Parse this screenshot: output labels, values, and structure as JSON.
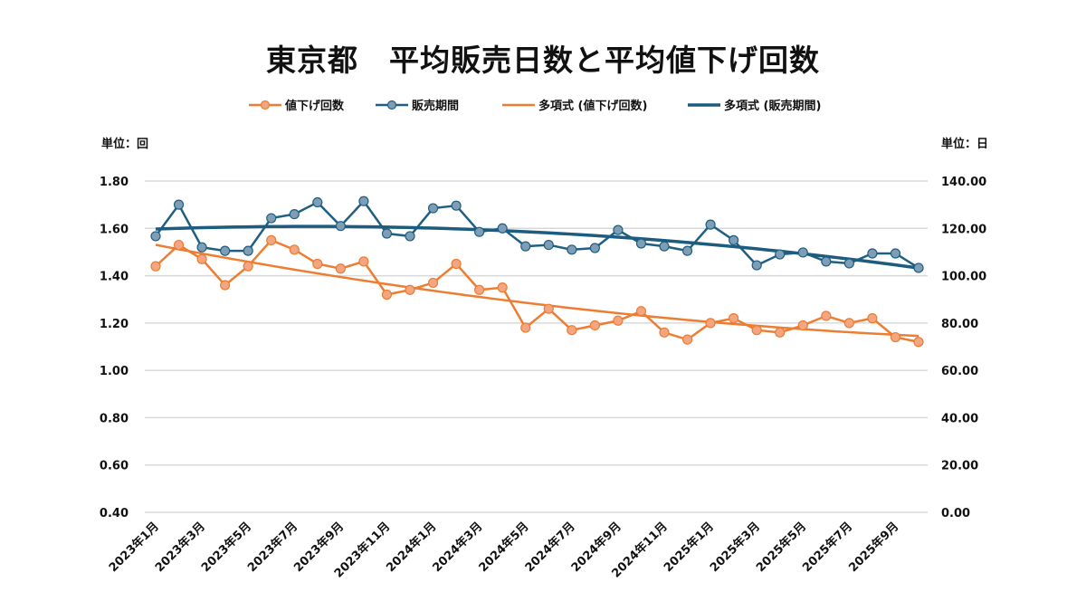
{
  "chart_data": {
    "type": "line",
    "title": "東京都　平均販売日数と平均値下げ回数",
    "y_left_label": "単位：回",
    "y_right_label": "単位：日",
    "ylim_left": [
      0.4,
      1.8
    ],
    "ylim_right": [
      0,
      140
    ],
    "yticks_left": [
      "0.40",
      "0.60",
      "0.80",
      "1.00",
      "1.20",
      "1.40",
      "1.60",
      "1.80"
    ],
    "yticks_right": [
      "0.00",
      "20.00",
      "40.00",
      "60.00",
      "80.00",
      "100.00",
      "120.00",
      "140.00"
    ],
    "grid": true,
    "legend_position": "top",
    "x": [
      "2023年1月",
      "2023年2月",
      "2023年3月",
      "2023年4月",
      "2023年5月",
      "2023年6月",
      "2023年7月",
      "2023年8月",
      "2023年9月",
      "2023年10月",
      "2023年11月",
      "2023年12月",
      "2024年1月",
      "2024年2月",
      "2024年3月",
      "2024年4月",
      "2024年5月",
      "2024年6月",
      "2024年7月",
      "2024年8月",
      "2024年9月",
      "2024年10月",
      "2024年11月",
      "2024年12月",
      "2025年1月",
      "2025年2月",
      "2025年3月",
      "2025年4月",
      "2025年5月",
      "2025年6月",
      "2025年7月",
      "2025年8月",
      "2025年9月",
      "2025年10月"
    ],
    "xtick_labels": [
      "2023年1月",
      "2023年3月",
      "2023年5月",
      "2023年7月",
      "2023年9月",
      "2023年11月",
      "2024年1月",
      "2024年3月",
      "2024年5月",
      "2024年7月",
      "2024年9月",
      "2024年11月",
      "2025年1月",
      "2025年3月",
      "2025年5月",
      "2025年7月",
      "2025年9月"
    ],
    "series": [
      {
        "name": "値下げ回数",
        "axis": "left",
        "color": "#ED7D31",
        "marker_color": "#F4A582",
        "values": [
          1.44,
          1.53,
          1.47,
          1.36,
          1.44,
          1.55,
          1.51,
          1.45,
          1.43,
          1.46,
          1.32,
          1.34,
          1.37,
          1.45,
          1.34,
          1.35,
          1.18,
          1.26,
          1.17,
          1.19,
          1.21,
          1.25,
          1.16,
          1.13,
          1.2,
          1.22,
          1.17,
          1.16,
          1.19,
          1.23,
          1.2,
          1.22,
          1.14,
          1.12
        ]
      },
      {
        "name": "販売期間",
        "axis": "right",
        "color": "#1F5F82",
        "marker_color": "#7F9DB5",
        "values": [
          116.7,
          130.0,
          112.0,
          110.5,
          110.5,
          124.3,
          126.0,
          131.0,
          121.0,
          131.5,
          117.8,
          116.7,
          128.5,
          129.6,
          118.5,
          120.0,
          112.4,
          113.0,
          111.0,
          111.7,
          119.3,
          113.6,
          112.4,
          110.5,
          121.6,
          115.0,
          104.4,
          109.0,
          109.8,
          106.0,
          105.2,
          109.4,
          109.4,
          103.3
        ]
      }
    ],
    "trendlines": [
      {
        "name": "多項式 (値下げ回数)",
        "of": "値下げ回数",
        "kind": "polynomial",
        "color": "#ED7D31"
      },
      {
        "name": "多項式 (販売期間)",
        "of": "販売期間",
        "kind": "polynomial",
        "color": "#1B5C80"
      }
    ]
  }
}
